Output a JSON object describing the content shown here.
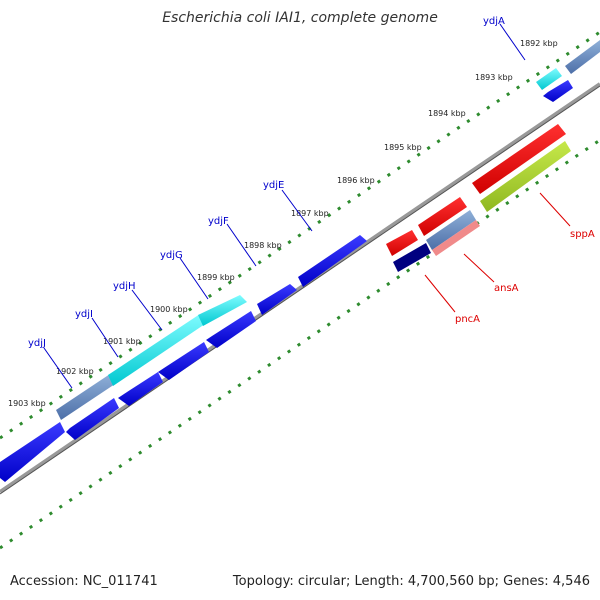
{
  "title": "Escherichia coli IAI1, complete genome",
  "footer": {
    "accession": "Accession: NC_011741",
    "info": "Topology: circular; Length: 4,700,560 bp; Genes: 4,546"
  },
  "colors": {
    "backbone": "#888888",
    "tick": "#2e8b2e",
    "cds": "#1010e8",
    "rna": "#00ffff",
    "pseudo": "#6b90c8",
    "highlight_red": "#ff0000",
    "highlight_green": "#9acd32",
    "label_blue": "#0000cc",
    "label_red": "#dd0000"
  },
  "kbp_labels": [
    "1892 kbp",
    "1893 kbp",
    "1894 kbp",
    "1895 kbp",
    "1896 kbp",
    "1897 kbp",
    "1898 kbp",
    "1899 kbp",
    "1900 kbp",
    "1901 kbp",
    "1902 kbp",
    "1903 kbp"
  ],
  "genes_top": [
    "ydjA",
    "ydjE",
    "ydjF",
    "ydjG",
    "ydjH",
    "ydjI",
    "ydjJ"
  ],
  "genes_right": [
    "sppA",
    "ansA",
    "pncA"
  ]
}
